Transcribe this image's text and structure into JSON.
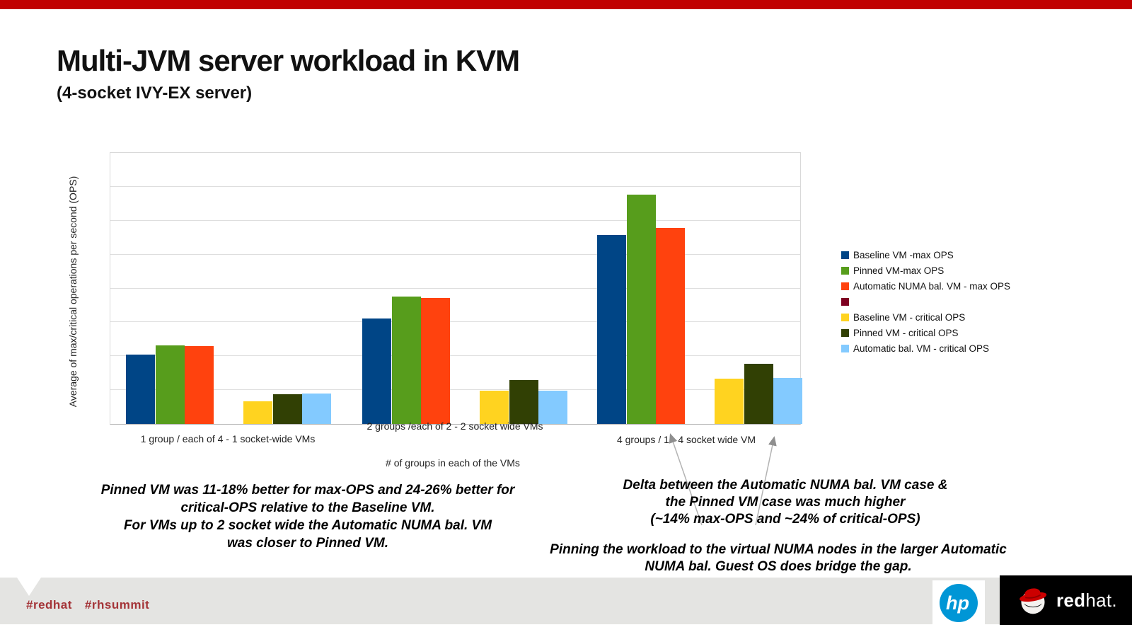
{
  "slide": {
    "title": "Multi-JVM server workload in KVM",
    "subtitle": "(4-socket IVY-EX server)"
  },
  "chart_data": {
    "type": "bar",
    "title": "",
    "xlabel": "# of groups in each of the VMs",
    "ylabel": "Average of max/critical operations per second (OPS)",
    "categories": [
      "1 group / each of 4 - 1 socket-wide VMs",
      "2 groups /each of 2 - 2 socket wide VMs",
      "4 groups / 1 - 4 socket wide VM"
    ],
    "y_axis": {
      "min": 0,
      "max": 8,
      "gridline_interval": 1,
      "tick_labels_visible": false,
      "units": "relative gridline units (numeric axis labels not shown)"
    },
    "grid": "horizontal",
    "legend_position": "right",
    "series": [
      {
        "name": "Baseline VM -max OPS",
        "color": "#004586",
        "cluster": "max",
        "values": [
          2.04,
          3.12,
          5.58
        ]
      },
      {
        "name": "Pinned VM-max OPS",
        "color": "#579d1c",
        "cluster": "max",
        "values": [
          2.31,
          3.77,
          6.77
        ]
      },
      {
        "name": "Automatic NUMA bal. VM - max OPS",
        "color": "#ff420e",
        "cluster": "max",
        "values": [
          2.3,
          3.71,
          5.79
        ]
      },
      {
        "name": "",
        "color": "#7e0021",
        "cluster": "none",
        "values": []
      },
      {
        "name": "Baseline VM - critical OPS",
        "color": "#ffd320",
        "cluster": "critical",
        "values": [
          0.66,
          0.98,
          1.33
        ]
      },
      {
        "name": "Pinned VM - critical OPS",
        "color": "#314004",
        "cluster": "critical",
        "values": [
          0.87,
          1.29,
          1.77
        ]
      },
      {
        "name": "Automatic bal. VM - critical OPS",
        "color": "#83caff",
        "cluster": "critical",
        "values": [
          0.9,
          0.98,
          1.35
        ]
      }
    ]
  },
  "annotations": {
    "left": {
      "lines": [
        "Pinned VM was 11-18% better for max-OPS and 24-26% better for",
        "critical-OPS relative to the Baseline VM.",
        "For VMs up to 2 socket wide the Automatic NUMA bal. VM",
        "was closer to Pinned VM."
      ]
    },
    "right_top": {
      "lines": [
        "Delta between the Automatic NUMA bal. VM case &",
        "the Pinned VM case was much higher",
        "(~14% max-OPS and ~24% of critical-OPS)"
      ]
    },
    "right_bottom": {
      "lines": [
        "Pinning the workload to the virtual NUMA nodes in the larger Automatic",
        "NUMA bal. Guest OS does bridge the gap."
      ]
    }
  },
  "footer": {
    "hashtag_1": "#redhat",
    "hashtag_2": "#rhsummit",
    "hp_logo_text": "hp",
    "redhat_logo_bold": "red",
    "redhat_logo_rest": "hat."
  },
  "colors": {
    "top_accent_bar": "#c00000",
    "hashtag_text": "#a43438",
    "hp_blue": "#0096d6",
    "footer_gray": "#e4e4e2",
    "redhat_box": "#000000",
    "callout_arrow": "#a0a0a0"
  }
}
